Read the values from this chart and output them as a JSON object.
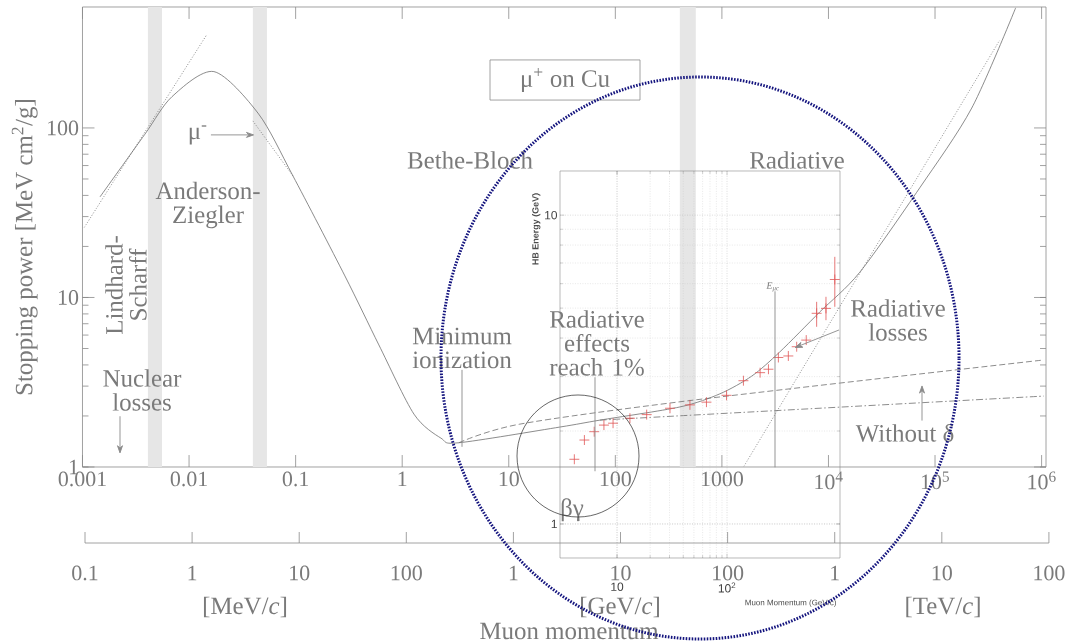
{
  "chart_data": [
    {
      "type": "line",
      "log": "xy",
      "xlabel": "βγ",
      "ylabel": "Stopping power [MeV cm$^{2}$/g]",
      "marker": "none",
      "xlim": [
        0.001,
        1100000
      ],
      "ylim": [
        1,
        517
      ],
      "xticks": [
        0.001,
        0.01,
        0.1,
        1,
        10,
        100,
        1000,
        {
          "value": 10000,
          "label": "10$^{4}$"
        },
        {
          "value": 100000,
          "label": "10$^{5}$"
        },
        {
          "value": 1000000,
          "label": "10$^{6}$"
        }
      ],
      "yticks": [
        1,
        10,
        100
      ],
      "bands": [
        {
          "axis": "x",
          "from": 0.00411,
          "to": 0.00557,
          "color": "#e6e6e6"
        },
        {
          "axis": "x",
          "from": 0.0397,
          "to": 0.0538,
          "color": "#e6e6e6"
        },
        {
          "axis": "x",
          "from": 403,
          "to": 569,
          "color": "#e6e6e6"
        }
      ],
      "series": [
        {
          "color": "#6e6e6e",
          "line_style": "solid",
          "x": [
            0.00146,
            0.00384,
            0.00692,
            0.0171,
            0.0449,
            0.0944,
            0.29,
            0.604,
            1.29,
            2.31,
            3.4,
            30.1,
            71.6,
            403,
            955,
            1910,
            3490,
            8280,
            19700,
            71800,
            221000,
            571000
          ],
          "values": [
            39.2,
            91.6,
            153,
            215,
            121,
            52.1,
            13.4,
            5.25,
            2.05,
            1.48,
            1.39,
            1.72,
            1.89,
            2.26,
            2.7,
            3.44,
            4.77,
            8.21,
            14.1,
            44.3,
            131,
            511
          ]
        },
        {
          "color": "#6e6e6e",
          "line_style": "dashed",
          "x": [
            3.4,
            12.7,
            569,
            1050000
          ],
          "values": [
            1.39,
            1.79,
            2.49,
            4.28
          ]
        },
        {
          "color": "#6e6e6e",
          "line_style": "dashdot",
          "x": [
            71.6,
            1050000
          ],
          "values": [
            1.89,
            2.62
          ]
        },
        {
          "color": "#6e6e6e",
          "line_style": "dotted",
          "x": [
            1610,
            405000
          ],
          "values": [
            1.01,
            330
          ]
        },
        {
          "color": "#6e6e6e",
          "line_style": "dotted",
          "x": [
            0.00104,
            0.0147
          ],
          "values": [
            25.9,
            356
          ]
        },
        {
          "color": "#6e6e6e",
          "line_style": "dotted",
          "x": [
            0.0397,
            0.0944
          ],
          "values": [
            110,
            52.1
          ]
        }
      ],
      "annotations": [
        "μ$^{+}$ on Cu",
        "Bethe-Bloch",
        "Radiative",
        "Anderson-Ziegler",
        "Lindhard-Scharff",
        "Nuclear losses",
        {
          "text": "μ$^{-}$",
          "x": 0.0415,
          "y": 91
        },
        "Minimum ionization",
        "Radiative effects reach 1%",
        "E$_{μc}$",
        "Radiative losses",
        "Without δ",
        "0.1",
        "1",
        "10",
        "100",
        "1",
        "10",
        "100",
        "1",
        "10",
        "100",
        "[MeV/*c*]",
        "[GeV/*c*]",
        "[TeV/*c*]",
        "Muon momentum"
      ]
    },
    {
      "type": "scatter",
      "log": "xy",
      "xlabel": "Muon Momentum (GeV/c)",
      "ylabel": "HB Energy (GeV)",
      "marker": "cross",
      "grid": true,
      "xlim": [
        3.03,
        1065
      ],
      "ylim": [
        0.776,
        13.9
      ],
      "xticks": [
        10,
        {
          "value": 100,
          "label": "10$^{2}$"
        }
      ],
      "yticks": [
        1,
        10
      ],
      "series": [
        {
          "color": "#e05555",
          "x": [
            4.09,
            5.05,
            6.2,
            7.6,
            9.2,
            13.1,
            18.6,
            30.3,
            46,
            65,
            99,
            141,
            200,
            238,
            293,
            361,
            430,
            525,
            653,
            794,
            955
          ],
          "values": [
            1.62,
            1.87,
            1.99,
            2.09,
            2.12,
            2.2,
            2.26,
            2.37,
            2.43,
            2.48,
            2.61,
            2.91,
            3.09,
            3.17,
            3.46,
            3.5,
            3.75,
            3.94,
            4.81,
            4.99,
            6.19
          ],
          "errors": [
            null,
            null,
            null,
            null,
            null,
            null,
            null,
            null,
            null,
            null,
            null,
            null,
            null,
            null,
            null,
            null,
            null,
            null,
            [
              4.35,
              5.24
            ],
            [
              4.57,
              5.44
            ],
            [
              5.05,
              7.33
            ]
          ]
        }
      ]
    }
  ]
}
